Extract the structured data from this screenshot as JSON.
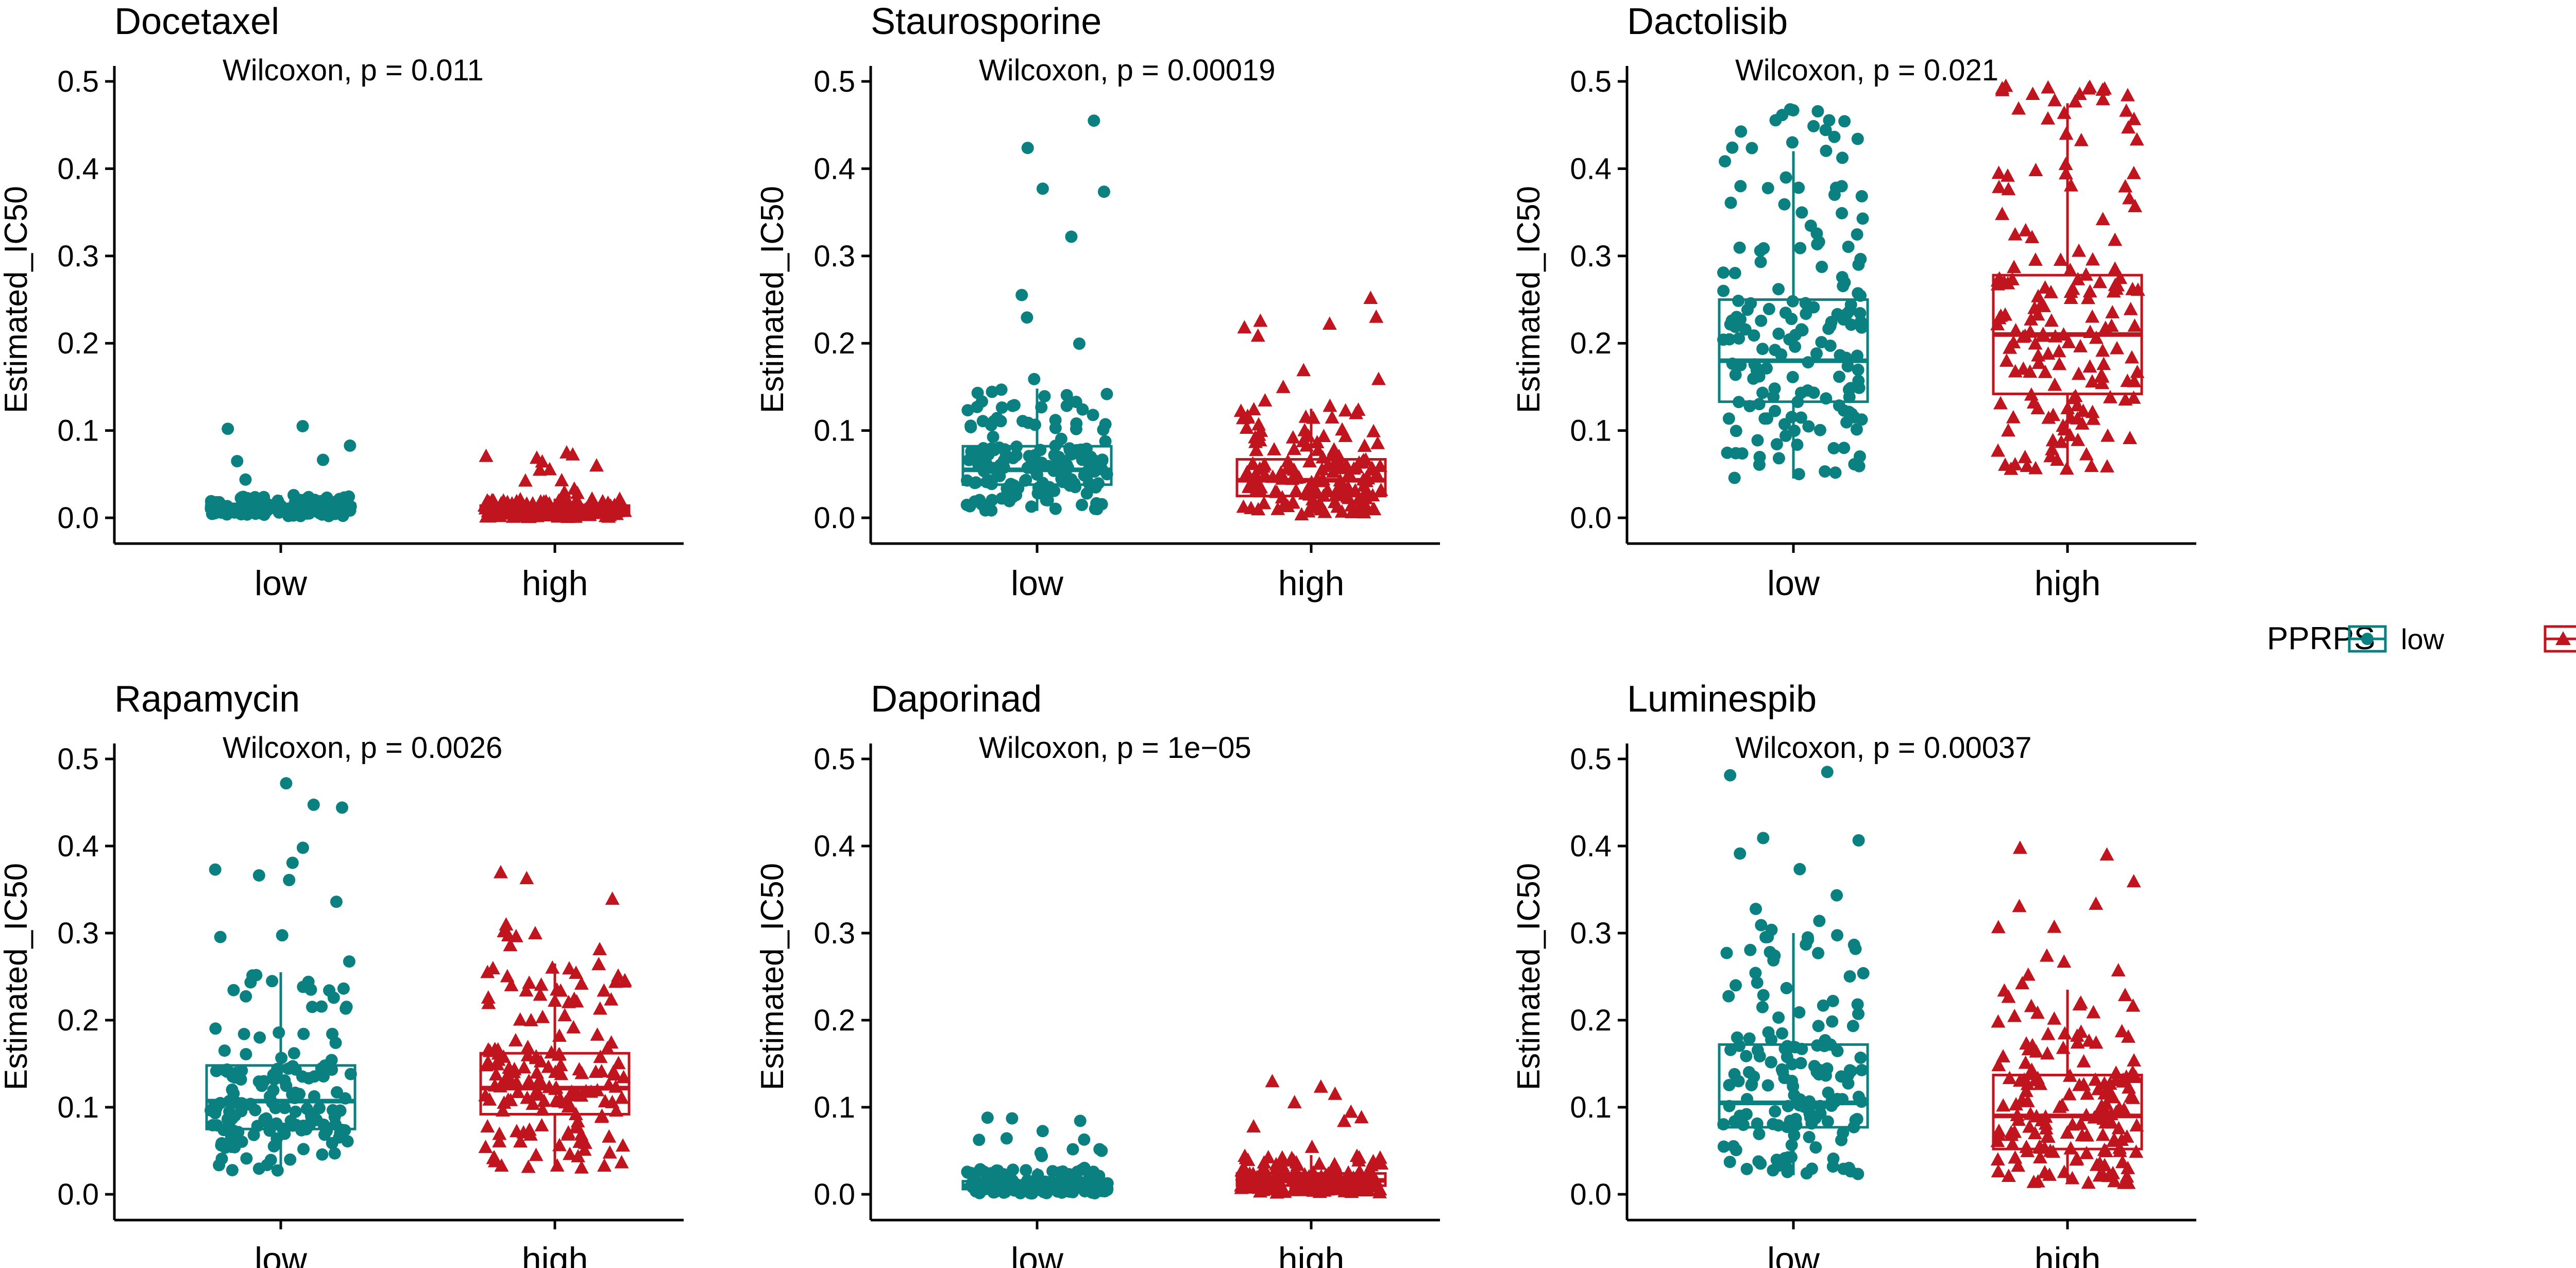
{
  "chart_data": {
    "type": "box",
    "layout": "2x3 facets",
    "legend": {
      "title": "PPRPS",
      "position": "right",
      "entries": [
        {
          "name": "low",
          "color": "#0a8080",
          "shape": "circle"
        },
        {
          "name": "high",
          "color": "#c0141e",
          "shape": "triangle"
        }
      ]
    },
    "panels": [
      {
        "title": "Docetaxel",
        "annotation": "Wilcoxon, p = 0.011",
        "ylabel": "Estimated_IC50",
        "ylim": [
          0,
          0.5
        ],
        "yticks": [
          "0.0",
          "0.1",
          "0.2",
          "0.3",
          "0.4",
          "0.5"
        ],
        "categories": [
          "low",
          "high"
        ],
        "groups": [
          {
            "name": "low",
            "q1": 0.008,
            "median": 0.012,
            "q3": 0.016,
            "whisker_low": 0.002,
            "whisker_high": 0.026,
            "max": 0.105,
            "point_spread": 0.04
          },
          {
            "name": "high",
            "q1": 0.006,
            "median": 0.01,
            "q3": 0.014,
            "whisker_low": 0.001,
            "whisker_high": 0.022,
            "max": 0.075,
            "point_spread": 0.035
          }
        ]
      },
      {
        "title": "Staurosporine",
        "annotation": "Wilcoxon, p = 0.00019",
        "ylabel": "Estimated_IC50",
        "ylim": [
          0,
          0.5
        ],
        "yticks": [
          "0.0",
          "0.1",
          "0.2",
          "0.3",
          "0.4",
          "0.5"
        ],
        "categories": [
          "low",
          "high"
        ],
        "groups": [
          {
            "name": "low",
            "q1": 0.038,
            "median": 0.055,
            "q3": 0.082,
            "whisker_low": 0.008,
            "whisker_high": 0.148,
            "max": 0.455,
            "point_spread": 0.13
          },
          {
            "name": "high",
            "q1": 0.025,
            "median": 0.043,
            "q3": 0.067,
            "whisker_low": 0.004,
            "whisker_high": 0.125,
            "max": 0.252,
            "point_spread": 0.12
          }
        ]
      },
      {
        "title": "Dactolisib",
        "annotation": "Wilcoxon, p = 0.021",
        "ylabel": "Estimated_IC50",
        "ylim": [
          0,
          0.5
        ],
        "yticks": [
          "0.0",
          "0.1",
          "0.2",
          "0.3",
          "0.4",
          "0.5"
        ],
        "categories": [
          "low",
          "high"
        ],
        "groups": [
          {
            "name": "low",
            "q1": 0.133,
            "median": 0.18,
            "q3": 0.25,
            "whisker_low": 0.045,
            "whisker_high": 0.42,
            "max": 0.468,
            "point_spread": 0.36
          },
          {
            "name": "high",
            "q1": 0.142,
            "median": 0.21,
            "q3": 0.278,
            "whisker_low": 0.055,
            "whisker_high": 0.475,
            "max": 0.495,
            "point_spread": 0.42
          }
        ]
      },
      {
        "title": "Rapamycin",
        "annotation": "Wilcoxon, p = 0.0026",
        "ylabel": "Estimated_IC50",
        "ylim": [
          0,
          0.5
        ],
        "yticks": [
          "0.0",
          "0.1",
          "0.2",
          "0.3",
          "0.4",
          "0.5"
        ],
        "categories": [
          "low",
          "high"
        ],
        "groups": [
          {
            "name": "low",
            "q1": 0.075,
            "median": 0.107,
            "q3": 0.148,
            "whisker_low": 0.025,
            "whisker_high": 0.255,
            "max": 0.472,
            "point_spread": 0.24
          },
          {
            "name": "high",
            "q1": 0.092,
            "median": 0.122,
            "q3": 0.162,
            "whisker_low": 0.03,
            "whisker_high": 0.265,
            "max": 0.37,
            "point_spread": 0.3
          }
        ]
      },
      {
        "title": "Daporinad",
        "annotation": "Wilcoxon, p = 1e−05",
        "ylabel": "Estimated_IC50",
        "ylim": [
          0,
          0.5
        ],
        "yticks": [
          "0.0",
          "0.1",
          "0.2",
          "0.3",
          "0.4",
          "0.5"
        ],
        "categories": [
          "low",
          "high"
        ],
        "groups": [
          {
            "name": "low",
            "q1": 0.006,
            "median": 0.01,
            "q3": 0.015,
            "whisker_low": 0.001,
            "whisker_high": 0.03,
            "max": 0.088,
            "point_spread": 0.055
          },
          {
            "name": "high",
            "q1": 0.01,
            "median": 0.016,
            "q3": 0.024,
            "whisker_low": 0.002,
            "whisker_high": 0.045,
            "max": 0.13,
            "point_spread": 0.09
          }
        ]
      },
      {
        "title": "Luminespib",
        "annotation": "Wilcoxon, p = 0.00037",
        "ylabel": "Estimated_IC50",
        "ylim": [
          0,
          0.5
        ],
        "yticks": [
          "0.0",
          "0.1",
          "0.2",
          "0.3",
          "0.4",
          "0.5"
        ],
        "categories": [
          "low",
          "high"
        ],
        "groups": [
          {
            "name": "low",
            "q1": 0.077,
            "median": 0.105,
            "q3": 0.172,
            "whisker_low": 0.022,
            "whisker_high": 0.3,
            "max": 0.485,
            "point_spread": 0.28
          },
          {
            "name": "high",
            "q1": 0.052,
            "median": 0.09,
            "q3": 0.137,
            "whisker_low": 0.012,
            "whisker_high": 0.235,
            "max": 0.398,
            "point_spread": 0.25
          }
        ]
      }
    ]
  }
}
